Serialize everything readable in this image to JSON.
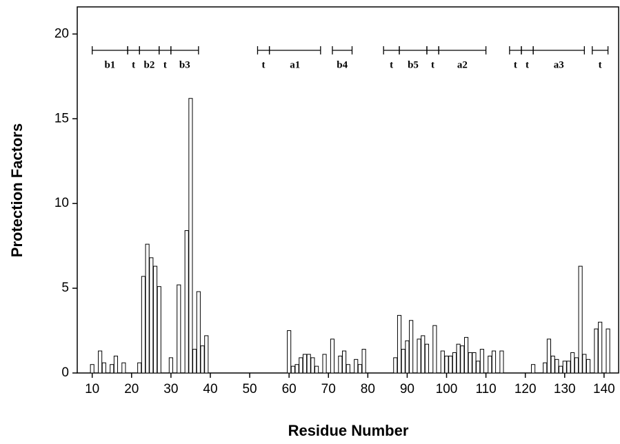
{
  "chart_data": {
    "type": "bar",
    "xlabel": "Residue Number",
    "ylabel": "Protection Factors",
    "x": [
      10,
      12,
      13,
      15,
      16,
      18,
      22,
      23,
      24,
      25,
      26,
      27,
      30,
      32,
      34,
      35,
      36,
      37,
      38,
      39,
      60,
      61,
      62,
      63,
      64,
      65,
      66,
      67,
      69,
      71,
      73,
      74,
      75,
      77,
      78,
      79,
      87,
      88,
      89,
      90,
      91,
      93,
      94,
      95,
      97,
      99,
      100,
      101,
      102,
      103,
      104,
      105,
      106,
      107,
      108,
      109,
      111,
      112,
      114,
      122,
      125,
      126,
      127,
      128,
      129,
      130,
      131,
      132,
      133,
      134,
      135,
      136,
      138,
      139,
      141
    ],
    "values": [
      0.5,
      1.3,
      0.6,
      0.5,
      1.0,
      0.6,
      0.6,
      5.7,
      7.6,
      6.8,
      6.3,
      5.1,
      0.9,
      5.2,
      8.4,
      16.2,
      1.4,
      4.8,
      1.6,
      2.2,
      2.5,
      0.4,
      0.5,
      0.9,
      1.1,
      1.1,
      0.9,
      0.4,
      1.1,
      2.0,
      1.0,
      1.3,
      0.5,
      0.8,
      0.5,
      1.4,
      0.9,
      3.4,
      1.4,
      1.9,
      3.1,
      2.0,
      2.2,
      1.7,
      2.8,
      1.3,
      1.0,
      1.0,
      1.2,
      1.7,
      1.6,
      2.1,
      1.2,
      1.2,
      0.7,
      1.4,
      1.0,
      1.3,
      1.3,
      0.5,
      0.6,
      2.0,
      1.0,
      0.8,
      0.4,
      0.7,
      0.7,
      1.2,
      0.9,
      6.3,
      1.1,
      0.8,
      2.6,
      3.0,
      2.6
    ],
    "color": "#ffffff",
    "xlim": [
      6.2,
      143.7
    ],
    "xticks": [
      10,
      20,
      30,
      40,
      50,
      60,
      70,
      80,
      90,
      100,
      110,
      120,
      130,
      140
    ],
    "ylim": [
      0,
      21.6
    ],
    "yticks": [
      0,
      5,
      10,
      15,
      20
    ],
    "secondary_structure": [
      {
        "label": "b1",
        "start": 10,
        "end": 19
      },
      {
        "label": "t",
        "start": 19,
        "end": 22
      },
      {
        "label": "b2",
        "start": 22,
        "end": 27
      },
      {
        "label": "t",
        "start": 27,
        "end": 30
      },
      {
        "label": "b3",
        "start": 30,
        "end": 37
      },
      {
        "label": "t",
        "start": 52,
        "end": 55
      },
      {
        "label": "a1",
        "start": 55,
        "end": 68
      },
      {
        "label": "b4",
        "start": 71,
        "end": 76
      },
      {
        "label": "t",
        "start": 84,
        "end": 88
      },
      {
        "label": "b5",
        "start": 88,
        "end": 95
      },
      {
        "label": "t",
        "start": 95,
        "end": 98
      },
      {
        "label": "a2",
        "start": 98,
        "end": 110
      },
      {
        "label": "t",
        "start": 116,
        "end": 119
      },
      {
        "label": "t",
        "start": 119,
        "end": 122
      },
      {
        "label": "a3",
        "start": 122,
        "end": 135
      },
      {
        "label": "t",
        "start": 137,
        "end": 141
      }
    ]
  }
}
